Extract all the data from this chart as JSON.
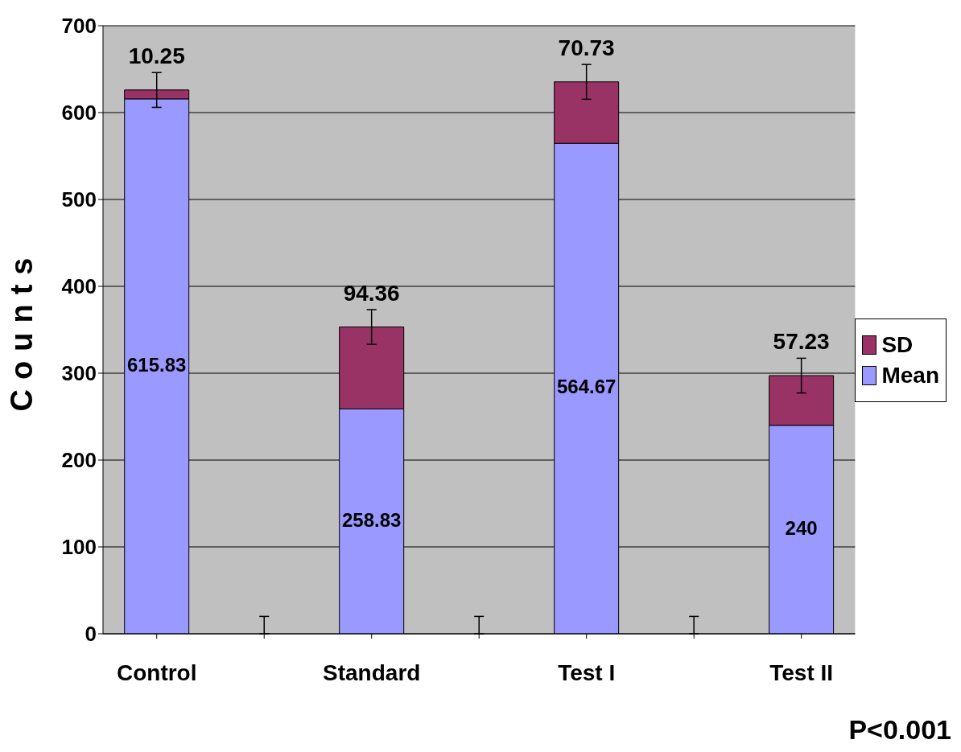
{
  "chart_data": {
    "type": "bar",
    "stacked": true,
    "ylabel": "Counts",
    "categories": [
      "Control",
      null,
      "Standard",
      null,
      "Test I",
      null,
      "Test II"
    ],
    "series": [
      {
        "name": "Mean",
        "color": "#9999ff",
        "values": [
          615.83,
          0,
          258.83,
          0,
          564.67,
          0,
          240
        ],
        "value_labels": [
          "615.83",
          null,
          "258.83",
          null,
          "564.67",
          null,
          "240"
        ]
      },
      {
        "name": "SD",
        "color": "#993366",
        "values": [
          10.25,
          0,
          94.36,
          0,
          70.73,
          0,
          57.23
        ],
        "value_labels": [
          "10.25",
          null,
          "94.36",
          null,
          "70.73",
          null,
          "57.23"
        ],
        "errors": [
          20,
          [
            0,
            20
          ],
          20,
          [
            0,
            20
          ],
          20,
          [
            0,
            20
          ],
          20
        ]
      }
    ],
    "ylim": [
      0,
      700
    ],
    "yticks": [
      0,
      100,
      200,
      300,
      400,
      500,
      600,
      700
    ],
    "grid": "y",
    "legend": "right",
    "annotations": [
      "P<0.001"
    ]
  }
}
